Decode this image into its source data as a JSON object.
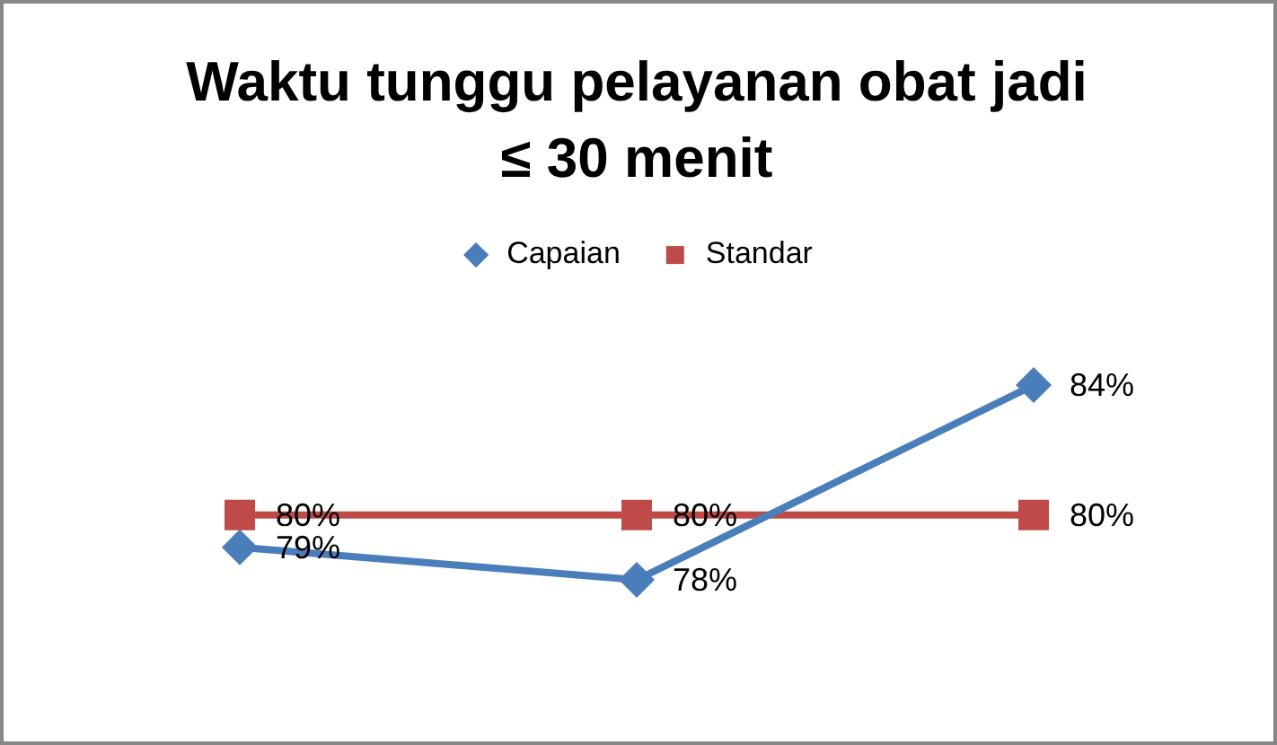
{
  "chart_data": {
    "type": "line",
    "title": "Waktu tunggu pelayanan obat jadi\n≤ 30 menit",
    "categories": [
      null,
      null,
      null
    ],
    "series": [
      {
        "name": "Capaian",
        "color": "#4a7ebb",
        "marker": "diamond",
        "values": [
          79,
          78,
          84
        ],
        "value_labels": [
          "79%",
          "78%",
          "84%"
        ]
      },
      {
        "name": "Standar",
        "color": "#be4b48",
        "marker": "square",
        "values": [
          80,
          80,
          80
        ],
        "value_labels": [
          "80%",
          "80%",
          "80%"
        ]
      }
    ],
    "legend": "top",
    "grid": false,
    "tick_labels": false
  }
}
